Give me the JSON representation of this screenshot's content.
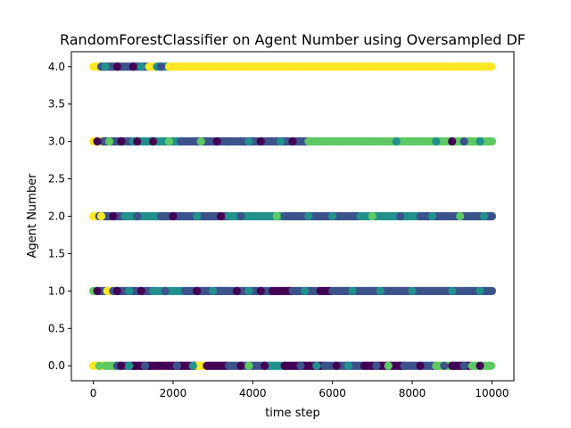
{
  "chart_data": {
    "type": "scatter",
    "title": "RandomForestClassifier on Agent Number using Oversampled DF",
    "xlabel": "time step",
    "ylabel": "Agent Number",
    "xlim": [
      -550,
      10550
    ],
    "ylim": [
      -0.2,
      4.2
    ],
    "x_ticks": [
      0,
      2000,
      4000,
      6000,
      8000,
      10000
    ],
    "x_tick_labels": [
      "0",
      "2000",
      "4000",
      "6000",
      "8000",
      "10000"
    ],
    "y_ticks": [
      0.0,
      0.5,
      1.0,
      1.5,
      2.0,
      2.5,
      3.0,
      3.5,
      4.0
    ],
    "y_tick_labels": [
      "0.0",
      "0.5",
      "1.0",
      "1.5",
      "2.0",
      "2.5",
      "3.0",
      "3.5",
      "4.0"
    ],
    "grid": false,
    "legend": "none",
    "colormap": "viridis",
    "class_colors": [
      "#440154",
      "#3b528b",
      "#21918c",
      "#5ec962",
      "#fde725"
    ],
    "rows": [
      {
        "y": 0,
        "segments": [
          {
            "x": [
              0,
              300
            ],
            "class": 4
          },
          {
            "x": [
              300,
              600
            ],
            "class": 3
          },
          {
            "x": [
              600,
              1000
            ],
            "class": 1
          },
          {
            "x": [
              1000,
              2600
            ],
            "class": 0
          },
          {
            "x": [
              2600,
              2850
            ],
            "class": 4
          },
          {
            "x": [
              2850,
              3400
            ],
            "class": 0
          },
          {
            "x": [
              3400,
              4400
            ],
            "class": 1
          },
          {
            "x": [
              4400,
              4800
            ],
            "class": 2
          },
          {
            "x": [
              4800,
              5800
            ],
            "class": 0
          },
          {
            "x": [
              5800,
              6800
            ],
            "class": 1
          },
          {
            "x": [
              6800,
              7800
            ],
            "class": 0
          },
          {
            "x": [
              7800,
              8600
            ],
            "class": 1
          },
          {
            "x": [
              8600,
              9000
            ],
            "class": 3
          },
          {
            "x": [
              9000,
              9500
            ],
            "class": 0
          },
          {
            "x": [
              9500,
              10000
            ],
            "class": 3
          }
        ],
        "sprinkles": [
          {
            "x": 150,
            "class": 3
          },
          {
            "x": 700,
            "class": 0
          },
          {
            "x": 900,
            "class": 2
          },
          {
            "x": 1300,
            "class": 1
          },
          {
            "x": 2100,
            "class": 1
          },
          {
            "x": 2500,
            "class": 2
          },
          {
            "x": 3700,
            "class": 0
          },
          {
            "x": 3900,
            "class": 3
          },
          {
            "x": 4300,
            "class": 0
          },
          {
            "x": 5200,
            "class": 1
          },
          {
            "x": 5600,
            "class": 2
          },
          {
            "x": 6100,
            "class": 0
          },
          {
            "x": 6400,
            "class": 2
          },
          {
            "x": 7100,
            "class": 1
          },
          {
            "x": 7400,
            "class": 3
          },
          {
            "x": 8200,
            "class": 0
          },
          {
            "x": 8800,
            "class": 1
          },
          {
            "x": 9300,
            "class": 1
          },
          {
            "x": 9700,
            "class": 0
          }
        ]
      },
      {
        "y": 1,
        "segments": [
          {
            "x": [
              0,
              150
            ],
            "class": 3
          },
          {
            "x": [
              150,
              350
            ],
            "class": 1
          },
          {
            "x": [
              350,
              500
            ],
            "class": 4
          },
          {
            "x": [
              500,
              1500
            ],
            "class": 1
          },
          {
            "x": [
              1500,
              2300
            ],
            "class": 2
          },
          {
            "x": [
              2300,
              3200
            ],
            "class": 1
          },
          {
            "x": [
              3200,
              4500
            ],
            "class": 1
          },
          {
            "x": [
              4500,
              5000
            ],
            "class": 0
          },
          {
            "x": [
              5000,
              5700
            ],
            "class": 1
          },
          {
            "x": [
              5700,
              6000
            ],
            "class": 0
          },
          {
            "x": [
              6000,
              10000
            ],
            "class": 1
          }
        ],
        "sprinkles": [
          {
            "x": 100,
            "class": 0
          },
          {
            "x": 600,
            "class": 0
          },
          {
            "x": 900,
            "class": 2
          },
          {
            "x": 1200,
            "class": 0
          },
          {
            "x": 1800,
            "class": 1
          },
          {
            "x": 2600,
            "class": 0
          },
          {
            "x": 3000,
            "class": 2
          },
          {
            "x": 3600,
            "class": 0
          },
          {
            "x": 3900,
            "class": 2
          },
          {
            "x": 4200,
            "class": 0
          },
          {
            "x": 5300,
            "class": 2
          },
          {
            "x": 6500,
            "class": 2
          },
          {
            "x": 7200,
            "class": 2
          },
          {
            "x": 8000,
            "class": 2
          },
          {
            "x": 9000,
            "class": 2
          },
          {
            "x": 9700,
            "class": 2
          }
        ]
      },
      {
        "y": 2,
        "segments": [
          {
            "x": [
              0,
              150
            ],
            "class": 4
          },
          {
            "x": [
              150,
              800
            ],
            "class": 1
          },
          {
            "x": [
              800,
              1700
            ],
            "class": 2
          },
          {
            "x": [
              1700,
              3400
            ],
            "class": 1
          },
          {
            "x": [
              3400,
              4800
            ],
            "class": 2
          },
          {
            "x": [
              4800,
              6700
            ],
            "class": 1
          },
          {
            "x": [
              6700,
              8200
            ],
            "class": 2
          },
          {
            "x": [
              8200,
              10000
            ],
            "class": 1
          }
        ],
        "sprinkles": [
          {
            "x": 200,
            "class": 4
          },
          {
            "x": 500,
            "class": 0
          },
          {
            "x": 1100,
            "class": 1
          },
          {
            "x": 2000,
            "class": 0
          },
          {
            "x": 2600,
            "class": 2
          },
          {
            "x": 3200,
            "class": 0
          },
          {
            "x": 3700,
            "class": 1
          },
          {
            "x": 4600,
            "class": 3
          },
          {
            "x": 5400,
            "class": 2
          },
          {
            "x": 6000,
            "class": 2
          },
          {
            "x": 7000,
            "class": 3
          },
          {
            "x": 7700,
            "class": 1
          },
          {
            "x": 8500,
            "class": 2
          },
          {
            "x": 9200,
            "class": 3
          },
          {
            "x": 9800,
            "class": 2
          }
        ]
      },
      {
        "y": 3,
        "segments": [
          {
            "x": [
              0,
              250
            ],
            "class": 4
          },
          {
            "x": [
              250,
              1000
            ],
            "class": 1
          },
          {
            "x": [
              1000,
              2200
            ],
            "class": 2
          },
          {
            "x": [
              2200,
              3400
            ],
            "class": 1
          },
          {
            "x": [
              3400,
              5400
            ],
            "class": 1
          },
          {
            "x": [
              5400,
              10000
            ],
            "class": 3
          }
        ],
        "sprinkles": [
          {
            "x": 100,
            "class": 0
          },
          {
            "x": 400,
            "class": 3
          },
          {
            "x": 700,
            "class": 0
          },
          {
            "x": 1100,
            "class": 0
          },
          {
            "x": 1500,
            "class": 0
          },
          {
            "x": 1900,
            "class": 3
          },
          {
            "x": 2700,
            "class": 3
          },
          {
            "x": 3100,
            "class": 0
          },
          {
            "x": 3900,
            "class": 2
          },
          {
            "x": 4200,
            "class": 0
          },
          {
            "x": 4700,
            "class": 2
          },
          {
            "x": 5000,
            "class": 0
          },
          {
            "x": 7600,
            "class": 2
          },
          {
            "x": 8600,
            "class": 2
          },
          {
            "x": 9000,
            "class": 0
          },
          {
            "x": 9300,
            "class": 1
          },
          {
            "x": 9700,
            "class": 2
          }
        ]
      },
      {
        "y": 4,
        "segments": [
          {
            "x": [
              0,
              200
            ],
            "class": 4
          },
          {
            "x": [
              200,
              1400
            ],
            "class": 1
          },
          {
            "x": [
              1400,
              1600
            ],
            "class": 4
          },
          {
            "x": [
              1600,
              1900
            ],
            "class": 2
          },
          {
            "x": [
              1900,
              10000
            ],
            "class": 4
          }
        ],
        "sprinkles": [
          {
            "x": 300,
            "class": 2
          },
          {
            "x": 600,
            "class": 0
          },
          {
            "x": 1000,
            "class": 0
          },
          {
            "x": 1200,
            "class": 2
          },
          {
            "x": 1700,
            "class": 1
          }
        ]
      }
    ]
  }
}
